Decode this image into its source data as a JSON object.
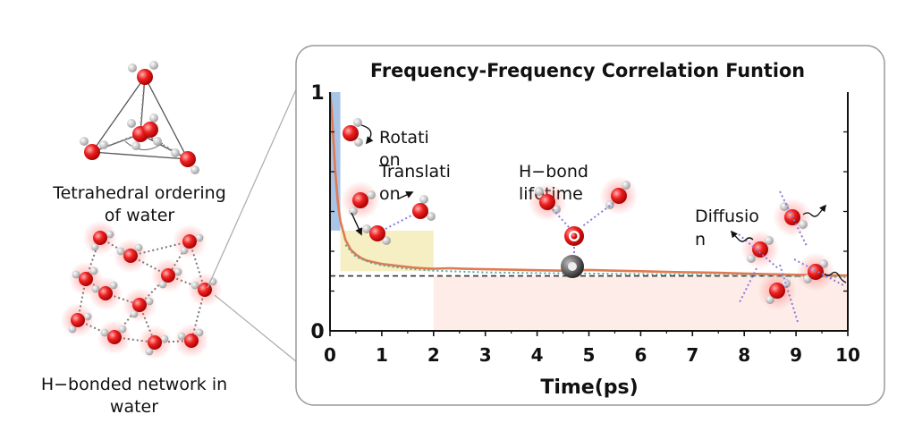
{
  "left_panel": {
    "tetra_caption_line1": "Tetrahedral ordering",
    "tetra_caption_line2": "of water",
    "network_caption_line1": "H−bonded network in",
    "network_caption_line2": "water"
  },
  "chart_data": {
    "type": "line",
    "title": "Frequency-Frequency Correlation Funtion",
    "xlabel": "Time(ps)",
    "ylabel": "",
    "xlim": [
      0,
      10
    ],
    "ylim": [
      0,
      1
    ],
    "x_ticks": [
      "0",
      "1",
      "2",
      "3",
      "4",
      "5",
      "6",
      "7",
      "8",
      "9",
      "10"
    ],
    "y_ticks": [
      "0",
      "1"
    ],
    "grid": false,
    "legend": "none",
    "series": [
      {
        "color": "#e07a50",
        "x": [
          0,
          0.03,
          0.06,
          0.1,
          0.15,
          0.2,
          0.3,
          0.4,
          0.5,
          0.6,
          0.7,
          0.8,
          0.9,
          1.0,
          1.2,
          1.4,
          1.6,
          1.8,
          2.0,
          2.3,
          2.6,
          3.0,
          3.5,
          4.0,
          4.5,
          5.0,
          5.5,
          6.0,
          6.5,
          7.0,
          7.5,
          8.0,
          8.5,
          9.0,
          9.5,
          10.0
        ],
        "y": [
          1.0,
          0.93,
          0.82,
          0.67,
          0.54,
          0.46,
          0.38,
          0.34,
          0.32,
          0.305,
          0.295,
          0.29,
          0.285,
          0.28,
          0.275,
          0.27,
          0.265,
          0.262,
          0.26,
          0.262,
          0.26,
          0.258,
          0.256,
          0.254,
          0.252,
          0.255,
          0.252,
          0.25,
          0.247,
          0.245,
          0.243,
          0.24,
          0.237,
          0.235,
          0.233,
          0.232
        ]
      },
      {
        "color": "#5aa6a0",
        "style": "dotted",
        "x": [
          0.3,
          0.5,
          0.8,
          1.0,
          1.5,
          2.0,
          3.0,
          4.0,
          5.0,
          6.0,
          7.0,
          8.0,
          9.0,
          10.0
        ],
        "y": [
          0.36,
          0.31,
          0.285,
          0.275,
          0.26,
          0.252,
          0.245,
          0.242,
          0.24,
          0.238,
          0.235,
          0.232,
          0.228,
          0.225
        ]
      }
    ],
    "reference_line": {
      "y": 0.23,
      "style": "dashed",
      "color": "#333333"
    },
    "regions": [
      {
        "name": "rotation",
        "x": [
          0,
          0.2
        ],
        "y": [
          0.42,
          1.0
        ],
        "color": "#aac4e8"
      },
      {
        "name": "translation",
        "x": [
          0.2,
          2.0
        ],
        "y": [
          0.25,
          0.42
        ],
        "color": "#f6efc3"
      },
      {
        "name": "diffusion",
        "x": [
          2.0,
          10.0
        ],
        "y": [
          0,
          0.23
        ],
        "color": "#fdece8"
      }
    ],
    "annotations": [
      {
        "id": "rotation",
        "lines": [
          "Rotati",
          "on"
        ]
      },
      {
        "id": "translation",
        "lines": [
          "Translati",
          "on"
        ]
      },
      {
        "id": "hbond",
        "lines": [
          "H−bond",
          "lifetime"
        ]
      },
      {
        "id": "diffusion",
        "lines": [
          "Diffusio",
          "n"
        ]
      }
    ],
    "colors": {
      "oxygen": "#e01515",
      "hydrogen": "#d8d8d8",
      "axis": "#111111",
      "panel_border": "#9a9a9a"
    }
  }
}
